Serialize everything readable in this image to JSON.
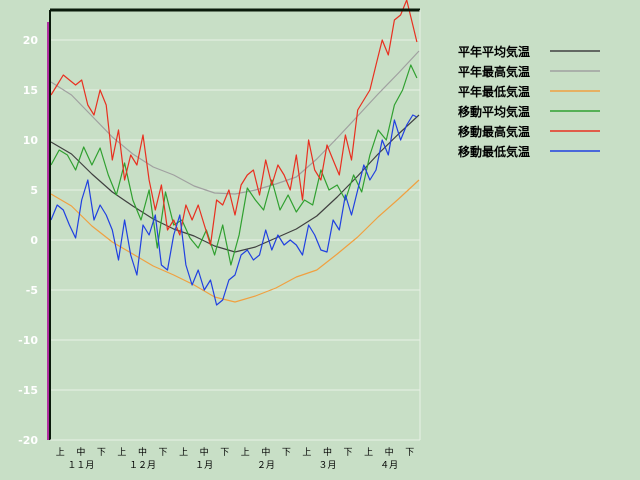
{
  "chart_data": {
    "type": "line",
    "title": "",
    "xlabel": "",
    "ylabel": "",
    "ylim": [
      -20,
      23
    ],
    "yticks": [
      20,
      15,
      10,
      5,
      0,
      -5,
      -10,
      -15,
      -20
    ],
    "grid": true,
    "legend_position": "top-right",
    "x_period_labels": [
      "上",
      "中",
      "下",
      "上",
      "中",
      "下",
      "上",
      "中",
      "下",
      "上",
      "中",
      "下",
      "上",
      "中",
      "下",
      "上",
      "中",
      "下"
    ],
    "x_month_labels": [
      "１１月",
      "１２月",
      "１月",
      "２月",
      "３月",
      "４月"
    ],
    "x_month_label_index": [
      1,
      4,
      7,
      10,
      13,
      16
    ],
    "num_days": 181,
    "series": [
      {
        "name": "平年平均気温",
        "color": "#404040",
        "days": [
          0,
          10,
          20,
          30,
          40,
          50,
          60,
          70,
          80,
          90,
          100,
          110,
          120,
          130,
          140,
          150,
          160,
          170,
          180
        ],
        "values": [
          9.8,
          8.6,
          6.6,
          4.8,
          3.4,
          2.1,
          1.1,
          0.4,
          -0.6,
          -1.2,
          -0.7,
          0.2,
          1.1,
          2.4,
          4.3,
          6.4,
          8.6,
          10.6,
          12.5
        ]
      },
      {
        "name": "平年最高気温",
        "color": "#a0a0a0",
        "days": [
          0,
          10,
          20,
          30,
          40,
          50,
          60,
          70,
          80,
          90,
          100,
          110,
          120,
          130,
          140,
          150,
          160,
          170,
          180
        ],
        "values": [
          15.8,
          14.5,
          12.4,
          10.3,
          8.6,
          7.3,
          6.5,
          5.4,
          4.7,
          4.6,
          5.0,
          5.6,
          6.3,
          8.1,
          10.2,
          12.4,
          14.6,
          16.7,
          18.9
        ]
      },
      {
        "name": "平年最低気温",
        "color": "#f0a040",
        "days": [
          0,
          10,
          20,
          30,
          40,
          50,
          60,
          70,
          80,
          90,
          100,
          110,
          120,
          130,
          140,
          150,
          160,
          170,
          180
        ],
        "values": [
          4.6,
          3.4,
          1.4,
          -0.2,
          -1.4,
          -2.6,
          -3.5,
          -4.5,
          -5.7,
          -6.2,
          -5.6,
          -4.8,
          -3.7,
          -3.0,
          -1.4,
          0.3,
          2.3,
          4.1,
          6.0
        ]
      },
      {
        "name": "移動平均気温",
        "color": "#30a030",
        "days": [
          0,
          4,
          8,
          12,
          16,
          20,
          24,
          28,
          32,
          36,
          40,
          44,
          48,
          52,
          56,
          60,
          64,
          68,
          72,
          76,
          80,
          84,
          88,
          92,
          96,
          100,
          104,
          108,
          112,
          116,
          120,
          124,
          128,
          132,
          136,
          140,
          144,
          148,
          152,
          156,
          160,
          164,
          168,
          172,
          176,
          179
        ],
        "values": [
          7.5,
          9.0,
          8.5,
          7.0,
          9.3,
          7.5,
          9.2,
          6.5,
          4.5,
          7.7,
          4.0,
          2.0,
          5.0,
          -0.8,
          4.8,
          1.5,
          2.0,
          0.2,
          -0.8,
          1.0,
          -1.5,
          1.5,
          -2.5,
          0.5,
          5.2,
          4.0,
          3.0,
          6.0,
          3.0,
          4.5,
          2.8,
          4.0,
          3.5,
          7.0,
          5.0,
          5.5,
          4.0,
          6.5,
          4.8,
          8.5,
          11.0,
          10.0,
          13.5,
          15.0,
          17.5,
          16.2
        ]
      },
      {
        "name": "移動最高気温",
        "color": "#e83020",
        "days": [
          0,
          3,
          6,
          9,
          12,
          15,
          18,
          21,
          24,
          27,
          30,
          33,
          36,
          39,
          42,
          45,
          48,
          51,
          54,
          57,
          60,
          63,
          66,
          69,
          72,
          75,
          78,
          81,
          84,
          87,
          90,
          93,
          96,
          99,
          102,
          105,
          108,
          111,
          114,
          117,
          120,
          123,
          126,
          129,
          132,
          135,
          138,
          141,
          144,
          147,
          150,
          153,
          156,
          159,
          162,
          165,
          168,
          171,
          174,
          177,
          179
        ],
        "values": [
          14.5,
          15.5,
          16.5,
          16.0,
          15.5,
          16.0,
          13.5,
          12.5,
          15.0,
          13.5,
          8.0,
          11.0,
          6.0,
          8.5,
          7.5,
          10.5,
          6.0,
          3.0,
          5.5,
          1.0,
          2.0,
          0.5,
          3.5,
          2.0,
          3.5,
          1.5,
          -0.5,
          4.0,
          3.5,
          5.0,
          2.5,
          5.5,
          6.5,
          7.0,
          4.5,
          8.0,
          5.5,
          7.5,
          6.5,
          5.0,
          8.5,
          4.0,
          10.0,
          7.0,
          6.0,
          9.5,
          8.0,
          6.5,
          10.5,
          8.0,
          13.0,
          14.0,
          15.0,
          17.5,
          20.0,
          18.5,
          22.0,
          22.5,
          24.0,
          21.5,
          19.8
        ]
      },
      {
        "name": "移動最低気温",
        "color": "#2040e0",
        "days": [
          0,
          3,
          6,
          9,
          12,
          15,
          18,
          21,
          24,
          27,
          30,
          33,
          36,
          39,
          42,
          45,
          48,
          51,
          54,
          57,
          60,
          63,
          66,
          69,
          72,
          75,
          78,
          81,
          84,
          87,
          90,
          93,
          96,
          99,
          102,
          105,
          108,
          111,
          114,
          117,
          120,
          123,
          126,
          129,
          132,
          135,
          138,
          141,
          144,
          147,
          150,
          153,
          156,
          159,
          162,
          165,
          168,
          171,
          174,
          177,
          179
        ],
        "values": [
          2.0,
          3.5,
          3.0,
          1.5,
          0.2,
          4.0,
          6.0,
          2.0,
          3.5,
          2.5,
          1.0,
          -2.0,
          2.0,
          -1.5,
          -3.5,
          1.5,
          0.5,
          2.5,
          -2.5,
          -3.0,
          0.5,
          2.5,
          -2.5,
          -4.5,
          -3.0,
          -5.0,
          -4.0,
          -6.5,
          -6.0,
          -4.0,
          -3.5,
          -1.5,
          -1.0,
          -2.0,
          -1.5,
          1.0,
          -1.0,
          0.5,
          -0.5,
          0.0,
          -0.5,
          -1.5,
          1.5,
          0.5,
          -1.0,
          -1.2,
          2.0,
          1.0,
          4.5,
          2.5,
          5.0,
          7.5,
          6.0,
          7.0,
          10.0,
          8.5,
          12.0,
          10.0,
          11.5,
          12.5,
          12.3
        ]
      }
    ]
  }
}
